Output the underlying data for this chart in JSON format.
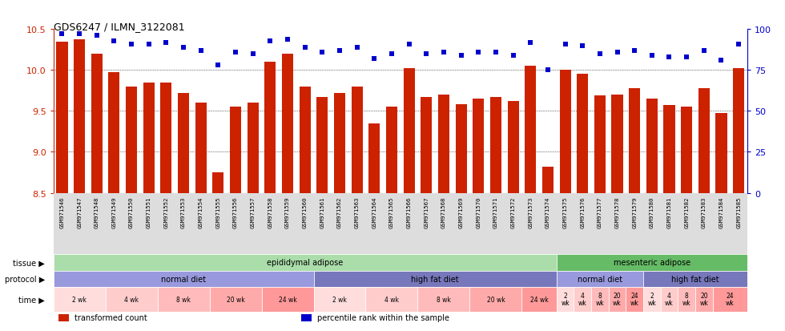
{
  "title": "GDS6247 / ILMN_3122081",
  "samples": [
    "GSM971546",
    "GSM971547",
    "GSM971548",
    "GSM971549",
    "GSM971550",
    "GSM971551",
    "GSM971552",
    "GSM971553",
    "GSM971554",
    "GSM971555",
    "GSM971556",
    "GSM971557",
    "GSM971558",
    "GSM971559",
    "GSM971560",
    "GSM971561",
    "GSM971562",
    "GSM971563",
    "GSM971564",
    "GSM971565",
    "GSM971566",
    "GSM971567",
    "GSM971568",
    "GSM971569",
    "GSM971570",
    "GSM971571",
    "GSM971572",
    "GSM971573",
    "GSM971574",
    "GSM971575",
    "GSM971576",
    "GSM971577",
    "GSM971578",
    "GSM971579",
    "GSM971580",
    "GSM971581",
    "GSM971582",
    "GSM971583",
    "GSM971584",
    "GSM971585"
  ],
  "bar_values": [
    10.35,
    10.38,
    10.2,
    9.97,
    9.8,
    9.85,
    9.85,
    9.72,
    9.6,
    8.75,
    9.55,
    9.6,
    10.1,
    10.2,
    9.8,
    9.67,
    9.72,
    9.8,
    9.35,
    9.55,
    10.02,
    9.67,
    9.7,
    9.58,
    9.65,
    9.67,
    9.62,
    10.05,
    8.82,
    10.0,
    9.95,
    9.69,
    9.7,
    9.78,
    9.65,
    9.57,
    9.55,
    9.78,
    9.47,
    10.02
  ],
  "percentile_values": [
    97,
    97,
    96,
    93,
    91,
    91,
    92,
    89,
    87,
    78,
    86,
    85,
    93,
    94,
    89,
    86,
    87,
    89,
    82,
    85,
    91,
    85,
    86,
    84,
    86,
    86,
    84,
    92,
    75,
    91,
    90,
    85,
    86,
    87,
    84,
    83,
    83,
    87,
    81,
    91
  ],
  "ylim_left": [
    8.5,
    10.5
  ],
  "ylim_right": [
    0,
    100
  ],
  "bar_color": "#CC2200",
  "dot_color": "#0000CC",
  "background_color": "#FFFFFF",
  "tissue_row": {
    "label": "tissue",
    "segments": [
      {
        "text": "epididymal adipose",
        "start": 0,
        "end": 29,
        "color": "#AADDAA"
      },
      {
        "text": "mesenteric adipose",
        "start": 29,
        "end": 40,
        "color": "#66BB66"
      }
    ]
  },
  "protocol_row": {
    "label": "protocol",
    "segments": [
      {
        "text": "normal diet",
        "start": 0,
        "end": 15,
        "color": "#9999DD"
      },
      {
        "text": "high fat diet",
        "start": 15,
        "end": 29,
        "color": "#7777BB"
      },
      {
        "text": "normal diet",
        "start": 29,
        "end": 34,
        "color": "#9999DD"
      },
      {
        "text": "high fat diet",
        "start": 34,
        "end": 40,
        "color": "#7777BB"
      }
    ]
  },
  "time_row": {
    "label": "time",
    "segments": [
      {
        "text": "2 wk",
        "start": 0,
        "end": 3,
        "color": "#FFDDDD"
      },
      {
        "text": "4 wk",
        "start": 3,
        "end": 6,
        "color": "#FFCCCC"
      },
      {
        "text": "8 wk",
        "start": 6,
        "end": 9,
        "color": "#FFBBBB"
      },
      {
        "text": "20 wk",
        "start": 9,
        "end": 12,
        "color": "#FFAAAA"
      },
      {
        "text": "24 wk",
        "start": 12,
        "end": 15,
        "color": "#FF9999"
      },
      {
        "text": "2 wk",
        "start": 15,
        "end": 18,
        "color": "#FFDDDD"
      },
      {
        "text": "4 wk",
        "start": 18,
        "end": 21,
        "color": "#FFCCCC"
      },
      {
        "text": "8 wk",
        "start": 21,
        "end": 24,
        "color": "#FFBBBB"
      },
      {
        "text": "20 wk",
        "start": 24,
        "end": 27,
        "color": "#FFAAAA"
      },
      {
        "text": "24 wk",
        "start": 27,
        "end": 29,
        "color": "#FF9999"
      },
      {
        "text": "2\nwk",
        "start": 29,
        "end": 30,
        "color": "#FFDDDD"
      },
      {
        "text": "4\nwk",
        "start": 30,
        "end": 31,
        "color": "#FFCCCC"
      },
      {
        "text": "8\nwk",
        "start": 31,
        "end": 32,
        "color": "#FFBBBB"
      },
      {
        "text": "20\nwk",
        "start": 32,
        "end": 33,
        "color": "#FFAAAA"
      },
      {
        "text": "24\nwk",
        "start": 33,
        "end": 34,
        "color": "#FF9999"
      },
      {
        "text": "2\nwk",
        "start": 34,
        "end": 35,
        "color": "#FFDDDD"
      },
      {
        "text": "4\nwk",
        "start": 35,
        "end": 36,
        "color": "#FFCCCC"
      },
      {
        "text": "8\nwk",
        "start": 36,
        "end": 37,
        "color": "#FFBBBB"
      },
      {
        "text": "20\nwk",
        "start": 37,
        "end": 38,
        "color": "#FFAAAA"
      },
      {
        "text": "24\nwk",
        "start": 38,
        "end": 40,
        "color": "#FF9999"
      }
    ]
  },
  "legend": [
    {
      "label": "transformed count",
      "color": "#CC2200"
    },
    {
      "label": "percentile rank within the sample",
      "color": "#0000CC"
    }
  ],
  "yticks_left": [
    8.5,
    9.0,
    9.5,
    10.0,
    10.5
  ],
  "yticks_right": [
    0,
    25,
    50,
    75,
    100
  ],
  "xtick_bg": "#DDDDDD"
}
